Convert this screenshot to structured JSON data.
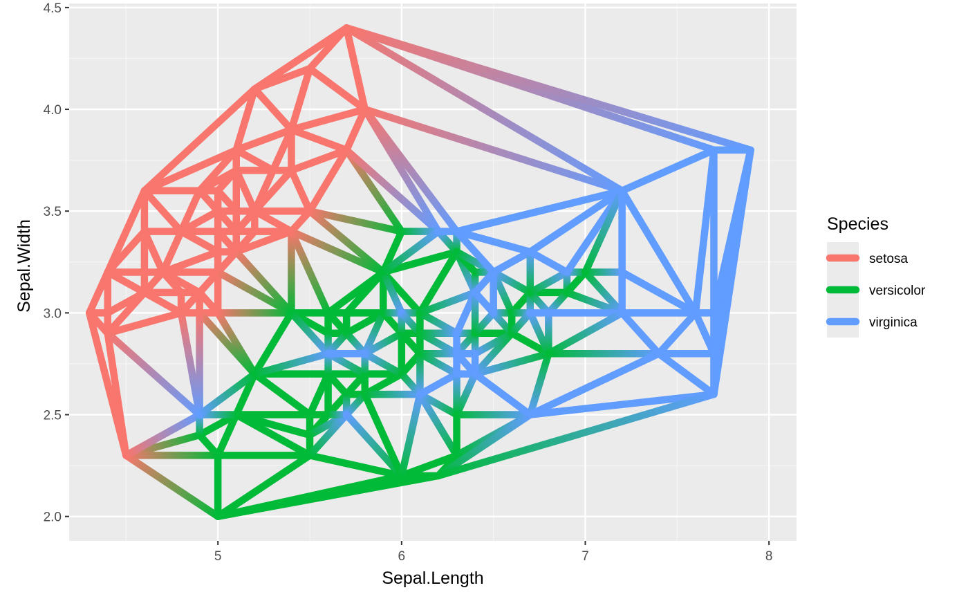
{
  "chart_data": {
    "type": "network",
    "description_geom": "Delaunay triangulation edges, colored by species gradient",
    "xlabel": "Sepal.Length",
    "ylabel": "Sepal.Width",
    "xlim": [
      4.19,
      8.15
    ],
    "ylim": [
      1.88,
      4.52
    ],
    "x_ticks": [
      5,
      6,
      7,
      8
    ],
    "x_tick_labels": [
      "5",
      "6",
      "7",
      "8"
    ],
    "y_ticks": [
      2.0,
      2.5,
      3.0,
      3.5,
      4.0,
      4.5
    ],
    "y_tick_labels": [
      "2.0",
      "2.5",
      "3.0",
      "3.5",
      "4.0",
      "4.5"
    ],
    "grid": true,
    "legend": {
      "title": "Species",
      "position": "right",
      "entries": [
        {
          "label": "setosa",
          "color": "#F8766D"
        },
        {
          "label": "versicolor",
          "color": "#00BA38"
        },
        {
          "label": "virginica",
          "color": "#619CFF"
        }
      ]
    },
    "colors": {
      "setosa": "#F8766D",
      "versicolor": "#00BA38",
      "virginica": "#619CFF",
      "panel": "#EBEBEB",
      "grid_major": "#FFFFFF",
      "grid_minor": "#F5F5F5"
    },
    "nodes": [
      [
        4.3,
        3.0,
        "s"
      ],
      [
        4.4,
        2.9,
        "s"
      ],
      [
        4.4,
        3.0,
        "s"
      ],
      [
        4.4,
        3.2,
        "s"
      ],
      [
        4.5,
        2.3,
        "s"
      ],
      [
        4.6,
        3.1,
        "s"
      ],
      [
        4.6,
        3.2,
        "s"
      ],
      [
        4.6,
        3.4,
        "s"
      ],
      [
        4.6,
        3.6,
        "s"
      ],
      [
        4.7,
        3.2,
        "s"
      ],
      [
        4.8,
        3.0,
        "s"
      ],
      [
        4.8,
        3.1,
        "s"
      ],
      [
        4.8,
        3.4,
        "s"
      ],
      [
        4.9,
        3.0,
        "s"
      ],
      [
        4.9,
        3.1,
        "s"
      ],
      [
        4.9,
        3.6,
        "s"
      ],
      [
        5.0,
        3.0,
        "s"
      ],
      [
        5.0,
        3.2,
        "s"
      ],
      [
        5.0,
        3.3,
        "s"
      ],
      [
        5.0,
        3.4,
        "s"
      ],
      [
        5.0,
        3.5,
        "s"
      ],
      [
        5.0,
        3.6,
        "s"
      ],
      [
        5.1,
        3.3,
        "s"
      ],
      [
        5.1,
        3.4,
        "s"
      ],
      [
        5.1,
        3.5,
        "s"
      ],
      [
        5.1,
        3.7,
        "s"
      ],
      [
        5.1,
        3.8,
        "s"
      ],
      [
        5.2,
        3.4,
        "s"
      ],
      [
        5.2,
        3.5,
        "s"
      ],
      [
        5.2,
        4.1,
        "s"
      ],
      [
        5.3,
        3.7,
        "s"
      ],
      [
        5.4,
        3.4,
        "s"
      ],
      [
        5.4,
        3.7,
        "s"
      ],
      [
        5.4,
        3.9,
        "s"
      ],
      [
        5.5,
        3.5,
        "s"
      ],
      [
        5.5,
        4.2,
        "s"
      ],
      [
        5.7,
        3.8,
        "s"
      ],
      [
        5.7,
        4.4,
        "s"
      ],
      [
        5.8,
        4.0,
        "s"
      ],
      [
        4.9,
        2.4,
        "v"
      ],
      [
        5.0,
        2.0,
        "v"
      ],
      [
        5.0,
        2.3,
        "v"
      ],
      [
        5.1,
        2.5,
        "v"
      ],
      [
        5.2,
        2.7,
        "v"
      ],
      [
        5.4,
        3.0,
        "v"
      ],
      [
        5.5,
        2.3,
        "v"
      ],
      [
        5.5,
        2.4,
        "v"
      ],
      [
        5.5,
        2.5,
        "v"
      ],
      [
        5.6,
        2.5,
        "v"
      ],
      [
        5.6,
        2.7,
        "v"
      ],
      [
        5.6,
        2.9,
        "v"
      ],
      [
        5.6,
        3.0,
        "v"
      ],
      [
        5.7,
        2.6,
        "v"
      ],
      [
        5.7,
        2.9,
        "v"
      ],
      [
        5.7,
        3.0,
        "v"
      ],
      [
        5.8,
        2.6,
        "v"
      ],
      [
        5.8,
        2.7,
        "v"
      ],
      [
        5.9,
        3.0,
        "v"
      ],
      [
        5.9,
        3.2,
        "v"
      ],
      [
        6.0,
        2.2,
        "v"
      ],
      [
        6.0,
        2.7,
        "v"
      ],
      [
        6.0,
        2.9,
        "v"
      ],
      [
        6.0,
        3.4,
        "v"
      ],
      [
        6.1,
        2.8,
        "v"
      ],
      [
        6.1,
        2.9,
        "v"
      ],
      [
        6.1,
        3.0,
        "v"
      ],
      [
        6.2,
        2.2,
        "v"
      ],
      [
        6.3,
        2.3,
        "v"
      ],
      [
        6.3,
        2.5,
        "v"
      ],
      [
        6.3,
        3.3,
        "v"
      ],
      [
        6.4,
        2.9,
        "v"
      ],
      [
        6.4,
        3.2,
        "v"
      ],
      [
        6.6,
        2.9,
        "v"
      ],
      [
        6.6,
        3.0,
        "v"
      ],
      [
        6.7,
        3.1,
        "v"
      ],
      [
        6.8,
        2.8,
        "v"
      ],
      [
        6.9,
        3.1,
        "v"
      ],
      [
        7.0,
        3.2,
        "v"
      ],
      [
        4.9,
        2.5,
        "g"
      ],
      [
        5.6,
        2.8,
        "g"
      ],
      [
        5.7,
        2.5,
        "g"
      ],
      [
        5.8,
        2.8,
        "g"
      ],
      [
        6.0,
        3.0,
        "g"
      ],
      [
        6.1,
        2.6,
        "g"
      ],
      [
        6.2,
        3.4,
        "g"
      ],
      [
        6.3,
        2.7,
        "g"
      ],
      [
        6.3,
        2.8,
        "g"
      ],
      [
        6.3,
        2.9,
        "g"
      ],
      [
        6.3,
        3.4,
        "g"
      ],
      [
        6.4,
        2.7,
        "g"
      ],
      [
        6.4,
        2.8,
        "g"
      ],
      [
        6.4,
        3.1,
        "g"
      ],
      [
        6.5,
        3.0,
        "g"
      ],
      [
        6.5,
        3.2,
        "g"
      ],
      [
        6.7,
        2.5,
        "g"
      ],
      [
        6.7,
        3.0,
        "g"
      ],
      [
        6.7,
        3.3,
        "g"
      ],
      [
        6.8,
        3.0,
        "g"
      ],
      [
        6.9,
        3.2,
        "g"
      ],
      [
        7.2,
        3.0,
        "g"
      ],
      [
        7.2,
        3.2,
        "g"
      ],
      [
        7.2,
        3.6,
        "g"
      ],
      [
        7.4,
        2.8,
        "g"
      ],
      [
        7.6,
        3.0,
        "g"
      ],
      [
        7.7,
        2.6,
        "g"
      ],
      [
        7.7,
        2.8,
        "g"
      ],
      [
        7.7,
        3.0,
        "g"
      ],
      [
        7.7,
        3.8,
        "g"
      ],
      [
        7.9,
        3.8,
        "g"
      ]
    ]
  }
}
